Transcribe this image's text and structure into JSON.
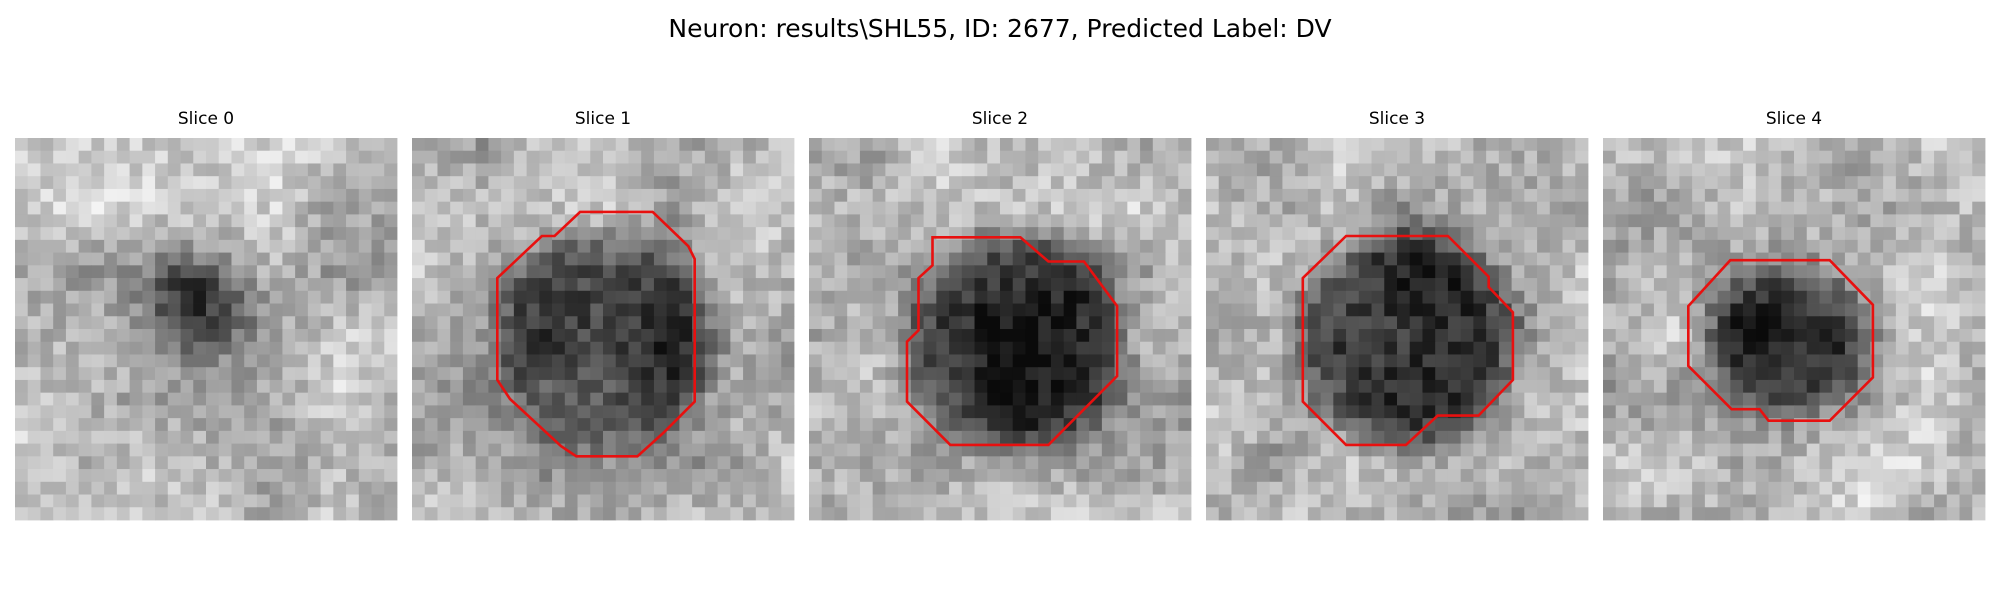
{
  "title": "Neuron: results\\SHL55, ID: 2677, Predicted Label: DV",
  "panels": [
    {
      "title": "Slice 0"
    },
    {
      "title": "Slice 1"
    },
    {
      "title": "Slice 2"
    },
    {
      "title": "Slice 3"
    },
    {
      "title": "Slice 4"
    }
  ]
}
